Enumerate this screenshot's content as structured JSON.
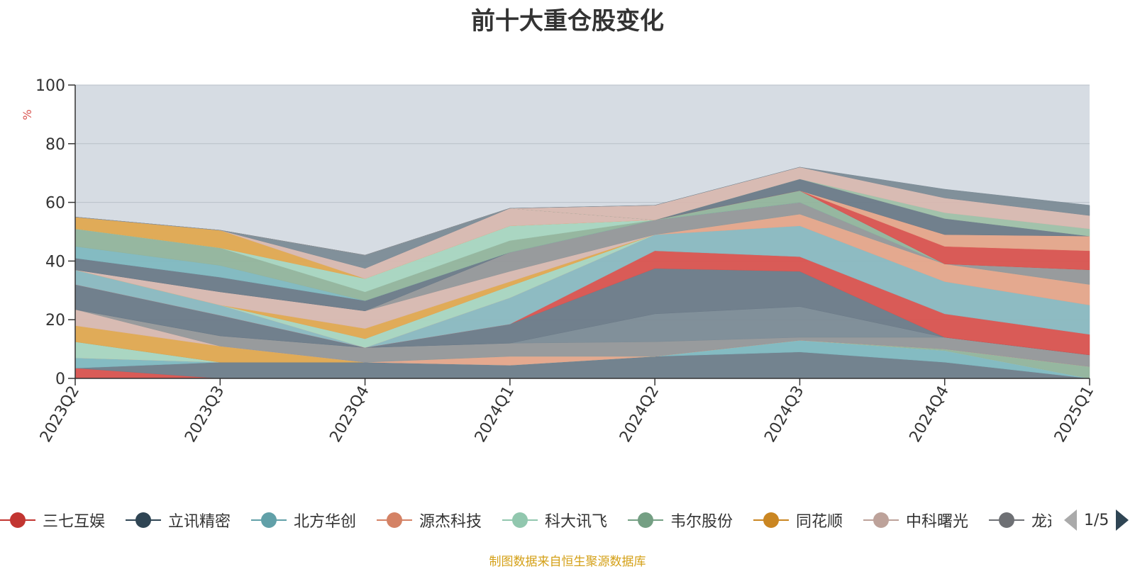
{
  "title": "前十大重仓股变化",
  "source_note": "制图数据来自恒生聚源数据库",
  "legend": {
    "items": [
      {
        "name": "三七互娱",
        "color": "#c23531"
      },
      {
        "name": "立讯精密",
        "color": "#2f4554"
      },
      {
        "name": "北方华创",
        "color": "#61a0a8"
      },
      {
        "name": "源杰科技",
        "color": "#d48265"
      },
      {
        "name": "科大讯飞",
        "color": "#91c7ae"
      },
      {
        "name": "韦尔股份",
        "color": "#749f83"
      },
      {
        "name": "同花顺",
        "color": "#ca8622"
      },
      {
        "name": "中科曙光",
        "color": "#bda29a"
      },
      {
        "name": "龙迅股份",
        "color": "#6e7074"
      }
    ],
    "page": "1/5"
  },
  "chart_data": {
    "type": "area",
    "stacked": true,
    "xlabel": "",
    "ylabel": "%",
    "ylim": [
      0,
      100
    ],
    "yticks": [
      0,
      20,
      40,
      60,
      80,
      100
    ],
    "categories": [
      "2023Q2",
      "2023Q3",
      "2023Q4",
      "2024Q1",
      "2024Q2",
      "2024Q3",
      "2024Q4",
      "2025Q1"
    ],
    "plot_background": "#d6dce3",
    "series": [
      {
        "color": "#d9534f",
        "values": [
          3.5,
          0,
          0,
          0,
          0,
          0,
          0,
          0
        ]
      },
      {
        "color": "#6e7d8a",
        "values": [
          0,
          5.5,
          5.5,
          4.5,
          7.5,
          9,
          5.5,
          0
        ]
      },
      {
        "color": "#7fb8c0",
        "values": [
          3.5,
          0,
          0,
          0,
          0,
          4,
          4,
          0
        ]
      },
      {
        "color": "#e5a58a",
        "values": [
          0,
          0,
          0,
          3,
          0,
          0,
          0,
          0
        ]
      },
      {
        "color": "#a8d5c0",
        "values": [
          5.5,
          0,
          0,
          0,
          0,
          0,
          0,
          0
        ]
      },
      {
        "color": "#92b49c",
        "values": [
          0,
          0,
          0,
          0,
          0,
          0,
          0.5,
          4
        ]
      },
      {
        "color": "#e0a850",
        "values": [
          5.5,
          5.5,
          0,
          0,
          0,
          0,
          0,
          0
        ]
      },
      {
        "color": "#d8b8b0",
        "values": [
          5.5,
          0,
          0,
          0,
          0,
          0,
          0,
          0
        ]
      },
      {
        "color": "#959799",
        "values": [
          0,
          3.5,
          5,
          4.5,
          5,
          1,
          4,
          4
        ]
      },
      {
        "color": "#7c8b96",
        "values": [
          0,
          0,
          0,
          0,
          9.5,
          10.5,
          0,
          0
        ]
      },
      {
        "color": "#6b7a88",
        "values": [
          8.5,
          7,
          0,
          6.5,
          15.5,
          12,
          0,
          0
        ]
      },
      {
        "color": "#d9534f",
        "values": [
          0,
          0,
          0,
          0,
          6,
          5,
          8,
          7
        ]
      },
      {
        "color": "#8ab8c0",
        "values": [
          5,
          3.5,
          0,
          9,
          5.5,
          10.5,
          11,
          10
        ]
      },
      {
        "color": "#e5a58a",
        "values": [
          0,
          0,
          0,
          0,
          0,
          4,
          6,
          7
        ]
      },
      {
        "color": "#9fc0a8",
        "values": [
          0,
          0,
          0,
          0,
          0,
          0,
          0,
          0
        ]
      },
      {
        "color": "#a8d5c0",
        "values": [
          0,
          0,
          3,
          4,
          0,
          0,
          0,
          0
        ]
      },
      {
        "color": "#e0a850",
        "values": [
          0,
          0,
          3.5,
          1.5,
          0,
          0,
          0,
          0
        ]
      },
      {
        "color": "#d8b8b0",
        "values": [
          0,
          4.5,
          6,
          3.5,
          0,
          0,
          0,
          0
        ]
      },
      {
        "color": "#959799",
        "values": [
          0,
          0,
          0,
          6.5,
          5,
          4,
          0,
          5
        ]
      },
      {
        "color": "#6b7a88",
        "values": [
          4,
          5,
          3.5,
          0,
          0,
          0,
          0,
          0
        ]
      },
      {
        "color": "#7fb8c0",
        "values": [
          4,
          4,
          0,
          0,
          0,
          0,
          0,
          0
        ]
      },
      {
        "color": "#92b49c",
        "values": [
          6,
          6,
          3,
          4,
          0,
          4,
          0,
          0
        ]
      },
      {
        "color": "#a8d5c0",
        "values": [
          0,
          0,
          4.5,
          5,
          0,
          0,
          0,
          0
        ]
      },
      {
        "color": "#e0a850",
        "values": [
          4,
          6,
          0,
          0,
          0,
          0,
          0,
          0
        ]
      },
      {
        "color": "#d8b8b0",
        "values": [
          0,
          0,
          3.5,
          6,
          0,
          0,
          0,
          0
        ]
      },
      {
        "color": "#7c8b96",
        "values": [
          0,
          0,
          4.5,
          0,
          0,
          0,
          0,
          0
        ]
      },
      {
        "color": "#d9534f",
        "values": [
          0,
          0,
          0,
          0,
          0,
          0,
          6,
          6.5
        ]
      },
      {
        "color": "#e5a58a",
        "values": [
          0,
          0,
          0,
          0,
          0,
          0,
          4,
          5
        ]
      },
      {
        "color": "#6b7a88",
        "values": [
          0,
          0,
          0,
          0,
          0,
          4,
          5.5,
          0
        ]
      },
      {
        "color": "#9fc0a8",
        "values": [
          0,
          0,
          0,
          0,
          0,
          0,
          2,
          2.5
        ]
      },
      {
        "color": "#d8b8b0",
        "values": [
          0,
          0,
          0,
          0,
          5,
          4,
          5,
          4.5
        ]
      },
      {
        "color": "#7c8b96",
        "values": [
          0,
          0,
          0,
          0,
          0,
          0,
          3,
          3.5
        ]
      }
    ]
  }
}
